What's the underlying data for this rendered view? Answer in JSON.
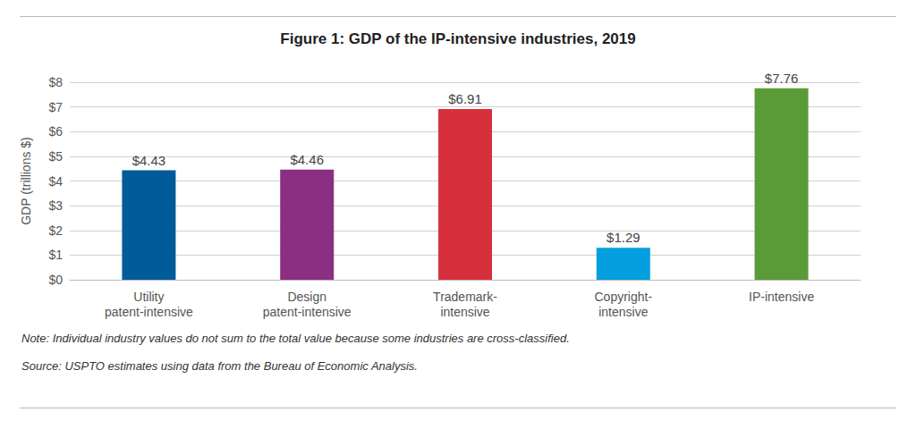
{
  "chart_data": {
    "type": "bar",
    "title": "Figure 1: GDP of the IP-intensive industries, 2019",
    "y_label": "GDP (trillions $)",
    "categories": [
      "Utility\npatent-intensive",
      "Design\npatent-intensive",
      "Trademark-\nintensive",
      "Copyright-\nintensive",
      "IP-intensive"
    ],
    "values": [
      4.43,
      4.46,
      6.91,
      1.29,
      7.76
    ],
    "value_labels": [
      "$4.43",
      "$4.46",
      "$6.91",
      "$1.29",
      "$7.76"
    ],
    "colors": [
      "#005b9a",
      "#8c2f82",
      "#d7303d",
      "#039fde",
      "#5b9b37"
    ],
    "data_labels": true,
    "ylim": [
      0,
      8
    ],
    "yticks": [
      {
        "value": 0,
        "label": "$0"
      },
      {
        "value": 1,
        "label": "$1"
      },
      {
        "value": 2,
        "label": "$2"
      },
      {
        "value": 3,
        "label": "$3"
      },
      {
        "value": 4,
        "label": "$4"
      },
      {
        "value": 5,
        "label": "$5"
      },
      {
        "value": 6,
        "label": "$6"
      },
      {
        "value": 7,
        "label": "$7"
      },
      {
        "value": 8,
        "label": "$8"
      }
    ],
    "grid": true,
    "annotations": [
      "Note: Individual industry values do not sum to the total value because some industries are cross-classified.",
      "Source: USPTO estimates using data from the Bureau of Economic Analysis."
    ]
  }
}
